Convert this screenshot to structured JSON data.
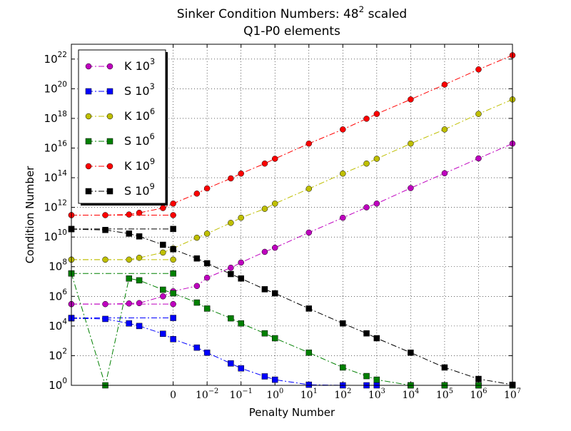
{
  "chart_data": {
    "type": "line",
    "title": "Sinker Condition Numbers: 48^2   scaled",
    "subtitle": "Q1-P0 elements",
    "x_label": "Penalty Number",
    "y_label": "Condition Number",
    "x": [
      1e-06,
      1e-05,
      5e-05,
      0.0001,
      0.0005,
      0.001,
      0.005,
      0.01,
      0.05,
      0.1,
      0.5,
      1,
      10,
      100,
      500,
      1000,
      10000.0,
      100000.0,
      1000000.0,
      10000000.0
    ],
    "x_flat": [
      1e-06,
      0.001
    ],
    "series": [
      {
        "name": "K 10^3",
        "color": "#bf00bf",
        "marker": "circle",
        "values": [
          300000.0,
          300000.0,
          330000.0,
          350000.0,
          1000000.0,
          2200000.0,
          5000000.0,
          18000000.0,
          85000000.0,
          190000000.0,
          1000000000.0,
          1900000000.0,
          20000000000.0,
          200000000000.0,
          1000000000000.0,
          1800000000000.0,
          20000000000000.0,
          200000000000000.0,
          2000000000000000.0,
          2e+16
        ],
        "flat_values": [
          300000.0,
          300000.0
        ]
      },
      {
        "name": "S 10^3",
        "color": "#0000ff",
        "marker": "square",
        "values": [
          33000.0,
          30000.0,
          15000.0,
          10000.0,
          3000.0,
          1300.0,
          350.0,
          160.0,
          30,
          14,
          4,
          2.4,
          1.1,
          1,
          1,
          1,
          1,
          1,
          1,
          1
        ],
        "flat_values": [
          35000.0,
          35000.0
        ]
      },
      {
        "name": "K 10^6",
        "color": "#bfbf00",
        "marker": "circle",
        "values": [
          300000000.0,
          300000000.0,
          300000000.0,
          400000000.0,
          900000000.0,
          1700000000.0,
          9000000000.0,
          17000000000.0,
          90000000000.0,
          200000000000.0,
          800000000000.0,
          1800000000000.0,
          18000000000000.0,
          190000000000000.0,
          900000000000000.0,
          1900000000000000.0,
          2e+16,
          1.8e+17,
          2e+18,
          1.9e+19
        ],
        "flat_values": [
          300000000.0,
          300000000.0
        ]
      },
      {
        "name": "S 10^6",
        "color": "#008000",
        "marker": "square",
        "values": [
          35000000.0,
          1,
          16000000.0,
          12000000.0,
          2800000.0,
          1600000.0,
          380000.0,
          150000.0,
          33000.0,
          15000.0,
          3200.0,
          1500.0,
          160,
          16,
          4.2,
          2.4,
          1,
          1,
          1,
          1
        ],
        "flat_values": [
          35000000.0,
          35000000.0
        ]
      },
      {
        "name": "K 10^9",
        "color": "#ff0000",
        "marker": "circle",
        "values": [
          300000000000.0,
          300000000000.0,
          330000000000.0,
          430000000000.0,
          900000000000.0,
          1800000000000.0,
          8500000000000.0,
          19000000000000.0,
          90000000000000.0,
          190000000000000.0,
          900000000000000.0,
          1900000000000000.0,
          2e+16,
          1.8e+17,
          9.5e+17,
          2e+18,
          1.9e+19,
          1.9e+20,
          2e+21,
          1.8e+22
        ],
        "flat_values": [
          300000000000.0,
          300000000000.0
        ]
      },
      {
        "name": "S 10^9",
        "color": "#000000",
        "marker": "square",
        "values": [
          34000000000.0,
          30000000000.0,
          17000000000.0,
          11000000000.0,
          3000000000.0,
          1500000000.0,
          360000000.0,
          170000000.0,
          32000000.0,
          16000000.0,
          3000000.0,
          1600000.0,
          150000.0,
          15000.0,
          3200.0,
          1500.0,
          160,
          16,
          2.7,
          1.1
        ],
        "flat_values": [
          35000000000.0,
          35000000000.0
        ]
      }
    ],
    "xlim": [
      1e-06,
      10000000.0
    ],
    "ylim": [
      1,
      1e+23
    ],
    "xlog": true,
    "ylog": true,
    "grid": true,
    "legend": "upper left",
    "xticks": [
      {
        "value": 0.001,
        "label": "0"
      },
      {
        "value": 0.01,
        "label": "10^−2"
      },
      {
        "value": 0.1,
        "label": "10^−1"
      },
      {
        "value": 1,
        "label": "10^0"
      },
      {
        "value": 10,
        "label": "10^1"
      },
      {
        "value": 100,
        "label": "10^2"
      },
      {
        "value": 1000,
        "label": "10^3"
      },
      {
        "value": 10000,
        "label": "10^4"
      },
      {
        "value": 100000,
        "label": "10^5"
      },
      {
        "value": 1000000,
        "label": "10^6"
      },
      {
        "value": 10000000,
        "label": "10^7"
      }
    ],
    "yticks": [
      {
        "value": 1,
        "label": "10^0"
      },
      {
        "value": 100,
        "label": "10^2"
      },
      {
        "value": 10000,
        "label": "10^4"
      },
      {
        "value": 1000000,
        "label": "10^6"
      },
      {
        "value": 100000000,
        "label": "10^8"
      },
      {
        "value": 10000000000,
        "label": "10^10"
      },
      {
        "value": 1000000000000,
        "label": "10^12"
      },
      {
        "value": 100000000000000,
        "label": "10^14"
      },
      {
        "value": 10000000000000000,
        "label": "10^16"
      },
      {
        "value": 1000000000000000000,
        "label": "10^18"
      },
      {
        "value": 100000000000000000000,
        "label": "10^20"
      },
      {
        "value": 1e+22,
        "label": "10^22"
      }
    ]
  }
}
